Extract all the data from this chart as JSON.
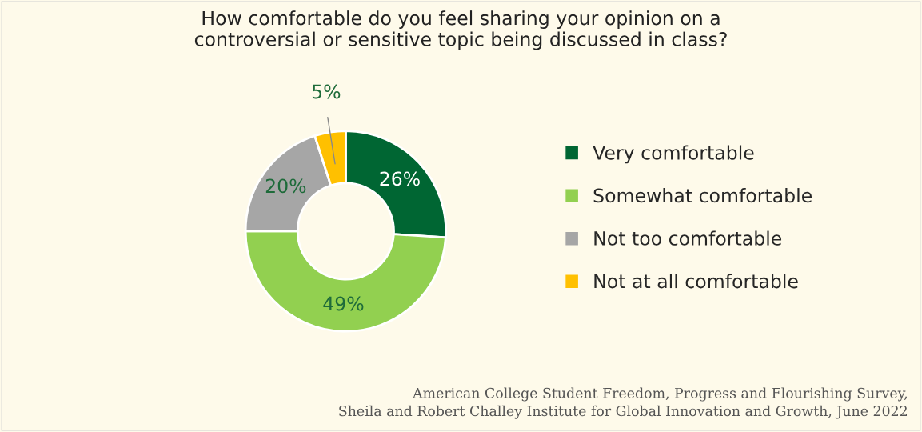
{
  "chart_data": {
    "type": "donut",
    "title": "How comfortable do you feel sharing your opinion on a\ncontroversial or sensitive topic being discussed in class?",
    "categories": [
      "Very comfortable",
      "Somewhat comfortable",
      "Not too comfortable",
      "Not at all comfortable"
    ],
    "values": [
      26,
      49,
      20,
      5
    ],
    "colors": [
      "#006633",
      "#92d050",
      "#a6a6a6",
      "#ffc000"
    ],
    "value_labels": [
      "26%",
      "49%",
      "20%",
      "5%"
    ],
    "legend": "right",
    "annotations": [
      "American College Student Freedom, Progress and Flourishing Survey,\nSheila and Robert Challey Institute for Global Innovation and Growth, June 2022"
    ]
  }
}
